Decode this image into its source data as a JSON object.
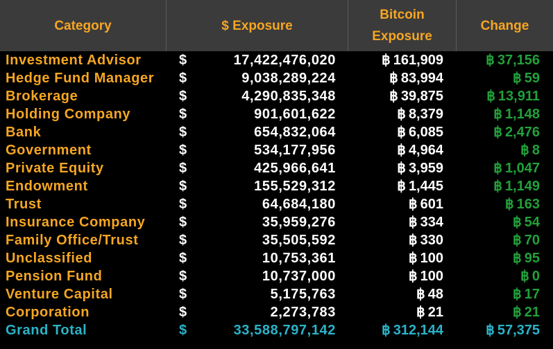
{
  "header": {
    "category": "Category",
    "usd_exposure": "$ Exposure",
    "btc_exposure": "Bitcoin\nExposure",
    "change": "Change"
  },
  "symbols": {
    "usd": "$",
    "btc": "฿"
  },
  "colors": {
    "header_bg": "#3b3b3b",
    "header_text": "#f5a623",
    "category": "#f5a623",
    "value": "#ffffff",
    "change": "#22a03a",
    "total": "#2bb3c8"
  },
  "rows": [
    {
      "category": "Investment Advisor",
      "usd": "17,422,476,020",
      "btc": "161,909",
      "change": "37,156"
    },
    {
      "category": "Hedge Fund Manager",
      "usd": "9,038,289,224",
      "btc": "83,994",
      "change": "59"
    },
    {
      "category": "Brokerage",
      "usd": "4,290,835,348",
      "btc": "39,875",
      "change": "13,911"
    },
    {
      "category": "Holding Company",
      "usd": "901,601,622",
      "btc": "8,379",
      "change": "1,148"
    },
    {
      "category": "Bank",
      "usd": "654,832,064",
      "btc": "6,085",
      "change": "2,476"
    },
    {
      "category": "Government",
      "usd": "534,177,956",
      "btc": "4,964",
      "change": "8"
    },
    {
      "category": "Private Equity",
      "usd": "425,966,641",
      "btc": "3,959",
      "change": "1,047"
    },
    {
      "category": "Endowment",
      "usd": "155,529,312",
      "btc": "1,445",
      "change": "1,149"
    },
    {
      "category": "Trust",
      "usd": "64,684,180",
      "btc": "601",
      "change": "163"
    },
    {
      "category": "Insurance Company",
      "usd": "35,959,276",
      "btc": "334",
      "change": "54"
    },
    {
      "category": "Family Office/Trust",
      "usd": "35,505,592",
      "btc": "330",
      "change": "70"
    },
    {
      "category": "Unclassified",
      "usd": "10,753,361",
      "btc": "100",
      "change": "95"
    },
    {
      "category": "Pension Fund",
      "usd": "10,737,000",
      "btc": "100",
      "change": "0"
    },
    {
      "category": "Venture Capital",
      "usd": "5,175,763",
      "btc": "48",
      "change": "17"
    },
    {
      "category": "Corporation",
      "usd": "2,273,783",
      "btc": "21",
      "change": "21"
    }
  ],
  "total": {
    "category": "Grand Total",
    "usd": "33,588,797,142",
    "btc": "312,144",
    "change": "57,375"
  }
}
